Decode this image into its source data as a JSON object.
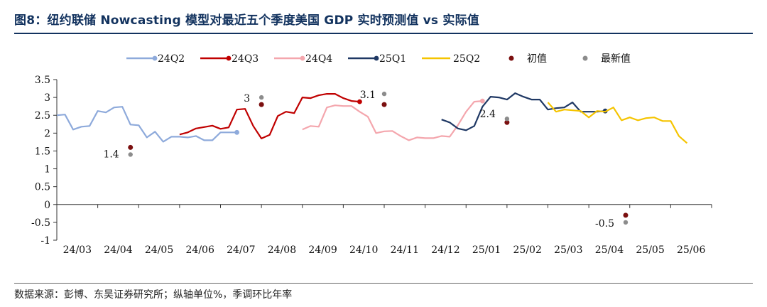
{
  "title": "图8：纽约联储 Nowcasting 模型对最近五个季度美国 GDP 实时预测值 vs 实际值",
  "footer": "数据来源：彭博、东吴证券研究所；纵轴单位%，季调环比年率",
  "chart_data": {
    "type": "line",
    "ylim": [
      -1,
      3.5
    ],
    "y_ticks": [
      "3.5",
      "3",
      "2.5",
      "2",
      "1.5",
      "1",
      "0.5",
      "0",
      "-0.5",
      "-1"
    ],
    "x_ticks": [
      "24/03",
      "24/04",
      "24/05",
      "24/06",
      "24/07",
      "24/08",
      "24/09",
      "24/10",
      "24/11",
      "24/12",
      "25/01",
      "25/02",
      "25/03",
      "25/04",
      "25/05",
      "25/06"
    ],
    "grid": false,
    "legend_position": "top",
    "legend": [
      "24Q2",
      "24Q3",
      "24Q4",
      "25Q1",
      "25Q2",
      "初值",
      "最新值"
    ],
    "series": [
      {
        "name": "24Q2",
        "color": "#8eaadb",
        "x": [
          0.0,
          0.2,
          0.4,
          0.6,
          0.8,
          1.0,
          1.2,
          1.4,
          1.6,
          1.8,
          2.0,
          2.2,
          2.4,
          2.6,
          2.8,
          3.0,
          3.2,
          3.4,
          3.6,
          3.8,
          4.0,
          4.2,
          4.4,
          4.6,
          4.8,
          5.0
        ],
        "y": [
          2.5,
          2.52,
          2.1,
          2.18,
          2.2,
          2.62,
          2.58,
          2.72,
          2.74,
          2.24,
          2.22,
          1.88,
          2.04,
          1.76,
          1.9,
          1.9,
          1.88,
          1.92,
          1.8,
          1.8,
          2.02,
          2.02,
          2.02,
          null,
          null,
          null
        ],
        "end_marker": true
      },
      {
        "name": "24Q3",
        "color": "#c00000",
        "x": [
          3.0,
          3.2,
          3.4,
          3.6,
          3.8,
          4.0,
          4.2,
          4.4,
          4.6,
          4.8,
          5.0,
          5.2,
          5.4,
          5.6,
          5.8,
          6.0,
          6.2,
          6.4,
          6.6,
          6.8,
          7.0,
          7.2,
          7.4,
          7.6,
          7.8,
          8.0
        ],
        "y": [
          1.96,
          2.02,
          2.13,
          2.17,
          2.21,
          2.12,
          2.16,
          2.66,
          2.68,
          2.2,
          1.85,
          1.95,
          2.48,
          2.6,
          2.56,
          3.0,
          2.98,
          3.06,
          3.1,
          3.1,
          2.98,
          2.9,
          2.88,
          null,
          null,
          null
        ],
        "end_marker": true
      },
      {
        "name": "24Q4",
        "color": "#f4a6ad",
        "x": [
          6.0,
          6.2,
          6.4,
          6.6,
          6.8,
          7.0,
          7.2,
          7.4,
          7.6,
          7.8,
          8.0,
          8.2,
          8.4,
          8.6,
          8.8,
          9.0,
          9.2,
          9.4,
          9.6,
          9.8,
          10.0,
          10.2,
          10.4,
          10.6,
          10.8,
          11.0
        ],
        "y": [
          2.1,
          2.2,
          2.18,
          2.72,
          2.78,
          2.76,
          2.76,
          2.6,
          2.46,
          2.0,
          2.05,
          2.06,
          1.92,
          1.8,
          1.88,
          1.86,
          1.86,
          1.92,
          1.9,
          2.22,
          2.6,
          2.88,
          2.9,
          null,
          null,
          null
        ],
        "end_marker": true
      },
      {
        "name": "25Q1",
        "color": "#1f3864",
        "x": [
          9.0,
          9.2,
          9.4,
          9.6,
          9.8,
          10.0,
          10.2,
          10.4,
          10.6,
          10.8,
          11.0,
          11.2,
          11.4,
          11.6,
          11.8,
          12.0,
          12.2,
          12.4,
          12.6,
          12.8,
          13.0,
          13.2,
          13.4,
          13.6,
          13.8,
          14.0
        ],
        "y": [
          null,
          null,
          2.38,
          2.3,
          2.13,
          2.08,
          2.2,
          2.74,
          3.02,
          3.0,
          2.94,
          3.12,
          3.02,
          2.94,
          2.94,
          2.66,
          2.7,
          2.72,
          2.86,
          2.6,
          2.6,
          2.6,
          2.62,
          null,
          null,
          null
        ],
        "end_marker": true
      },
      {
        "name": "25Q2",
        "color": "#f5c400",
        "x": [
          12.0,
          12.2,
          12.4,
          12.6,
          12.8,
          13.0,
          13.2,
          13.4,
          13.6,
          13.8,
          14.0,
          14.2,
          14.4,
          14.6,
          14.8,
          15.0,
          15.2,
          15.4,
          15.6,
          15.8
        ],
        "y": [
          2.86,
          2.6,
          2.66,
          2.64,
          2.62,
          2.44,
          2.62,
          2.6,
          2.72,
          2.36,
          2.44,
          2.36,
          2.42,
          2.44,
          2.34,
          2.34,
          1.92,
          1.72,
          null,
          null
        ]
      }
    ],
    "initial_values": [
      {
        "quarter": "24Q2",
        "x": 1.8,
        "y": 1.6
      },
      {
        "quarter": "24Q3",
        "x": 5.0,
        "y": 2.8
      },
      {
        "quarter": "24Q4",
        "x": 8.0,
        "y": 2.8
      },
      {
        "quarter": "25Q1",
        "x": 11.0,
        "y": 2.3
      },
      {
        "quarter": "25Q2",
        "x": 13.9,
        "y": -0.3
      }
    ],
    "latest_values": [
      {
        "quarter": "24Q2",
        "x": 1.8,
        "y": 1.4,
        "label": "1.4"
      },
      {
        "quarter": "24Q3",
        "x": 5.0,
        "y": 3.0,
        "label": "3"
      },
      {
        "quarter": "24Q4",
        "x": 8.0,
        "y": 3.1,
        "label": "3.1"
      },
      {
        "quarter": "25Q1",
        "x": 11.0,
        "y": 2.4,
        "label": "2.4"
      },
      {
        "quarter": "25Q2",
        "x": 13.9,
        "y": -0.5,
        "label": "-0.5"
      }
    ],
    "colors": {
      "initial": "#7b0f0f",
      "latest": "#8c8c8c",
      "axis": "#333333"
    }
  }
}
